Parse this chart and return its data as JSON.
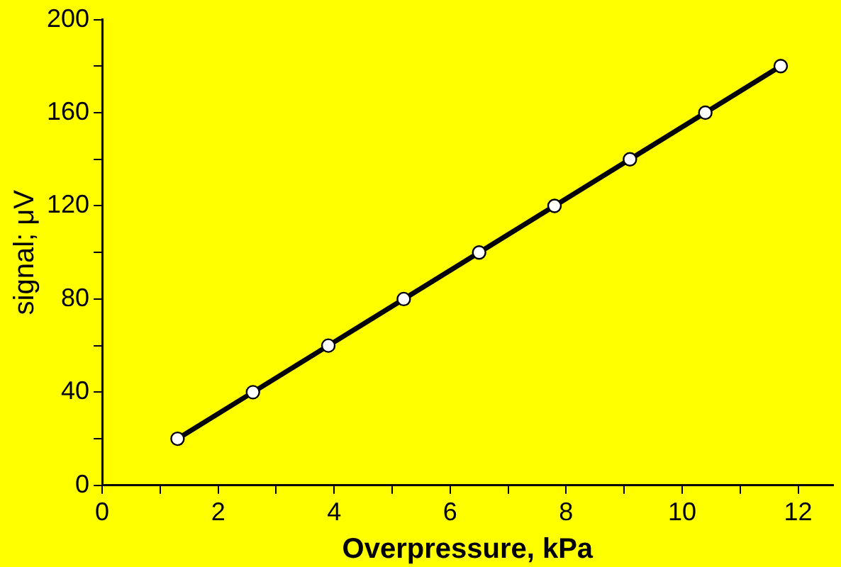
{
  "chart_data": {
    "type": "line",
    "xlabel": "Overpressure, kPa",
    "ylabel": "signal; μV",
    "x": [
      1.3,
      2.6,
      3.9,
      5.2,
      6.5,
      7.8,
      9.1,
      10.4,
      11.7
    ],
    "series": [
      {
        "color": "#000000",
        "values": [
          20,
          40,
          60,
          80,
          100,
          120,
          140,
          160,
          180
        ]
      }
    ],
    "xlim": [
      0,
      12.6
    ],
    "ylim": [
      0,
      200
    ],
    "xticks": [
      0,
      {
        "value": 1,
        "label": null
      },
      2,
      {
        "value": 3,
        "label": null
      },
      4,
      {
        "value": 5,
        "label": null
      },
      6,
      {
        "value": 7,
        "label": null
      },
      8,
      {
        "value": 9,
        "label": null
      },
      10,
      {
        "value": 11,
        "label": null
      },
      12
    ],
    "yticks": [
      0,
      {
        "value": 20,
        "label": null
      },
      40,
      {
        "value": 60,
        "label": null
      },
      80,
      {
        "value": 100,
        "label": null
      },
      120,
      {
        "value": 140,
        "label": null
      },
      160,
      {
        "value": 180,
        "label": null
      },
      200
    ],
    "marker": "circle",
    "line_style": "solid",
    "grid": false,
    "legend": false
  }
}
